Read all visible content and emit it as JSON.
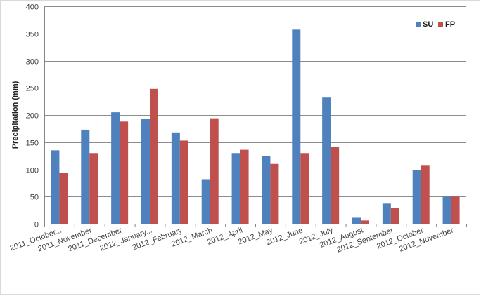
{
  "chart_data": {
    "type": "bar",
    "title": "",
    "xlabel": "",
    "ylabel": "Precipitation (mm)",
    "ylim": [
      0,
      400
    ],
    "yticks": [
      0,
      50,
      100,
      150,
      200,
      250,
      300,
      350,
      400
    ],
    "grid": true,
    "legend_position": "top-right",
    "categories": [
      "2011_October...",
      "2011_November",
      "2011_December",
      "2012_January...",
      "2012_February",
      "2012_March",
      "2012_April",
      "2012_May",
      "2012_June",
      "2012_July",
      "2012_August",
      "2012_September",
      "2012_October",
      "2012_November"
    ],
    "series": [
      {
        "name": "SU",
        "color": "#4f81bd",
        "values": [
          135,
          173,
          205,
          193,
          168,
          82,
          130,
          124,
          357,
          232,
          11,
          37,
          99,
          50
        ]
      },
      {
        "name": "FP",
        "color": "#c0504d",
        "values": [
          94,
          130,
          188,
          248,
          153,
          194,
          136,
          110,
          130,
          141,
          6,
          29,
          108,
          50
        ]
      }
    ]
  }
}
